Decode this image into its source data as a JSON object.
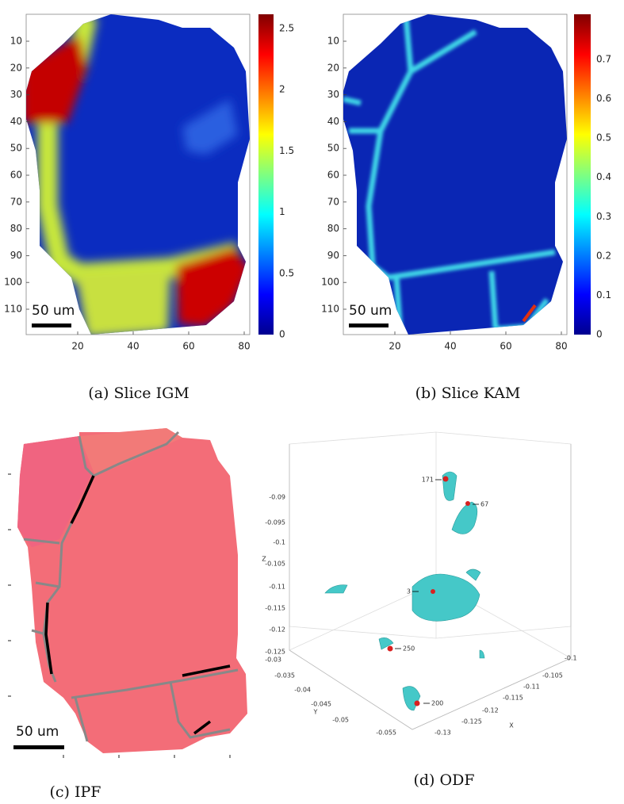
{
  "panels": [
    {
      "caption": "(a) Slice IGM",
      "scale_bar": "50 um",
      "y_ticks": [
        "10",
        "20",
        "30",
        "40",
        "50",
        "60",
        "70",
        "80",
        "90",
        "100",
        "110"
      ],
      "x_ticks": [
        "20",
        "40",
        "60",
        "80"
      ],
      "colorbar_ticks": [
        "0",
        "0.5",
        "1",
        "1.5",
        "2",
        "2.5"
      ]
    },
    {
      "caption": "(b) Slice KAM",
      "scale_bar": "50 um",
      "y_ticks": [
        "10",
        "20",
        "30",
        "40",
        "50",
        "60",
        "70",
        "80",
        "90",
        "100",
        "110"
      ],
      "x_ticks": [
        "20",
        "40",
        "60",
        "80"
      ],
      "colorbar_ticks": [
        "0",
        "0.1",
        "0.2",
        "0.3",
        "0.4",
        "0.5",
        "0.6",
        "0.7"
      ]
    },
    {
      "caption": "(c) IPF",
      "scale_bar": "50 um"
    },
    {
      "caption": "(d) ODF",
      "z_ticks": [
        "-0.09",
        "-0.095",
        "-0.1",
        "-0.105",
        "-0.11",
        "-0.115",
        "-0.12",
        "-0.125"
      ],
      "y_ticks": [
        "-0.03",
        "-0.035",
        "-0.04",
        "-0.045",
        "-0.05",
        "-0.055"
      ],
      "x_ticks": [
        "-0.13",
        "-0.125",
        "-0.12",
        "-0.115",
        "-0.11",
        "-0.105",
        "-0.1"
      ],
      "z_label": "Z",
      "y_label": "Y",
      "x_label": "X",
      "annotations": [
        "171",
        "67",
        "3",
        "250",
        "200"
      ]
    }
  ]
}
